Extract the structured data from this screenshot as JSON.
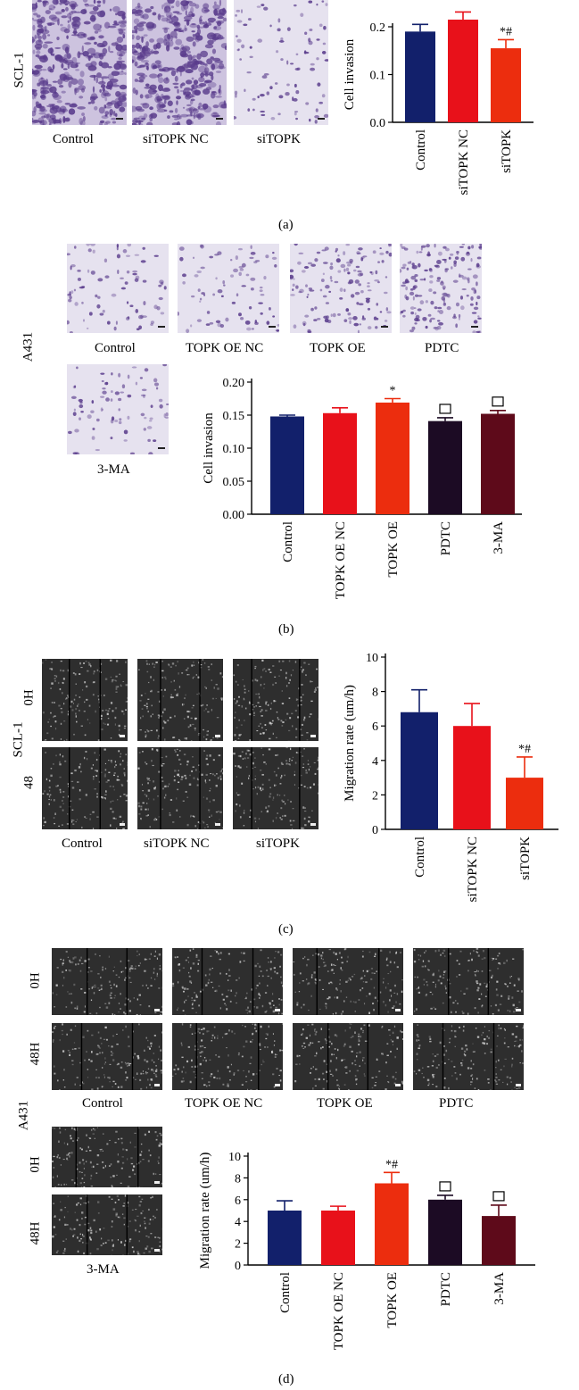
{
  "panels": {
    "a": {
      "caption": "(a)",
      "row_label": "SCL-1",
      "image_labels": [
        "Control",
        "siTOPK NC",
        "siTOPK"
      ]
    },
    "b": {
      "caption": "(b)",
      "row_label": "A431",
      "image_labels": [
        "Control",
        "TOPK OE NC",
        "TOPK OE",
        "PDTC",
        "3-MA"
      ]
    },
    "c": {
      "caption": "(c)",
      "cell_label": "SCL-1",
      "time_labels": [
        "0H",
        "48"
      ],
      "image_labels": [
        "Control",
        "siTOPK NC",
        "siTOPK"
      ]
    },
    "d": {
      "caption": "(d)",
      "cell_label": "A431",
      "time_labels": [
        "0H",
        "48H"
      ],
      "image_labels": [
        "Control",
        "TOPK OE NC",
        "TOPK OE",
        "PDTC",
        "3-MA"
      ]
    }
  },
  "colors": {
    "navy": "#12206b",
    "red": "#e8111a",
    "orange_red": "#ec2d0e",
    "dark": "#1c0b24",
    "maroon": "#5e0a1a",
    "stain": "#5a3c8c",
    "scratch": "#2e2e2e"
  },
  "chart_data": [
    {
      "id": "a",
      "type": "bar",
      "categories": [
        "Control",
        "siTOPK NC",
        "siTOPK"
      ],
      "values": [
        0.19,
        0.215,
        0.155
      ],
      "errors": [
        0.015,
        0.016,
        0.018
      ],
      "annotations": [
        "",
        "",
        "*#"
      ],
      "colors": [
        "#12206b",
        "#e8111a",
        "#ec2d0e"
      ],
      "ylabel": "Cell invasion",
      "ylim": [
        0,
        0.2
      ],
      "yticks": [
        "0.0",
        "0.1",
        "0.2"
      ]
    },
    {
      "id": "b",
      "type": "bar",
      "categories": [
        "Control",
        "TOPK OE NC",
        "TOPK OE",
        "PDTC",
        "3-MA"
      ],
      "values": [
        0.148,
        0.153,
        0.169,
        0.141,
        0.152
      ],
      "errors": [
        0.002,
        0.008,
        0.006,
        0.005,
        0.005
      ],
      "annotations": [
        "",
        "",
        "*",
        "□",
        "□"
      ],
      "colors": [
        "#12206b",
        "#e8111a",
        "#ec2d0e",
        "#1c0b24",
        "#5e0a1a"
      ],
      "ylabel": "Cell invasion",
      "ylim": [
        0,
        0.2
      ],
      "yticks": [
        "0.00",
        "0.05",
        "0.10",
        "0.15",
        "0.20"
      ]
    },
    {
      "id": "c",
      "type": "bar",
      "categories": [
        "Control",
        "siTOPK NC",
        "siTOPK"
      ],
      "values": [
        6.8,
        6.0,
        3.0
      ],
      "errors": [
        1.3,
        1.3,
        1.2
      ],
      "annotations": [
        "",
        "",
        "*#"
      ],
      "colors": [
        "#12206b",
        "#e8111a",
        "#ec2d0e"
      ],
      "ylabel": "Migration rate (um/h)",
      "ylim": [
        0,
        10
      ],
      "yticks": [
        "0",
        "2",
        "4",
        "6",
        "8",
        "10"
      ]
    },
    {
      "id": "d",
      "type": "bar",
      "categories": [
        "Control",
        "TOPK OE NC",
        "TOPK OE",
        "PDTC",
        "3-MA"
      ],
      "values": [
        5.0,
        5.0,
        7.5,
        6.0,
        4.5
      ],
      "errors": [
        0.9,
        0.4,
        1.0,
        0.4,
        1.0
      ],
      "annotations": [
        "",
        "",
        "*#",
        "□",
        "□"
      ],
      "colors": [
        "#12206b",
        "#e8111a",
        "#ec2d0e",
        "#1c0b24",
        "#5e0a1a"
      ],
      "ylabel": "Migration rate (um/h)",
      "ylim": [
        0,
        10
      ],
      "yticks": [
        "0",
        "2",
        "4",
        "6",
        "8",
        "10"
      ]
    }
  ]
}
